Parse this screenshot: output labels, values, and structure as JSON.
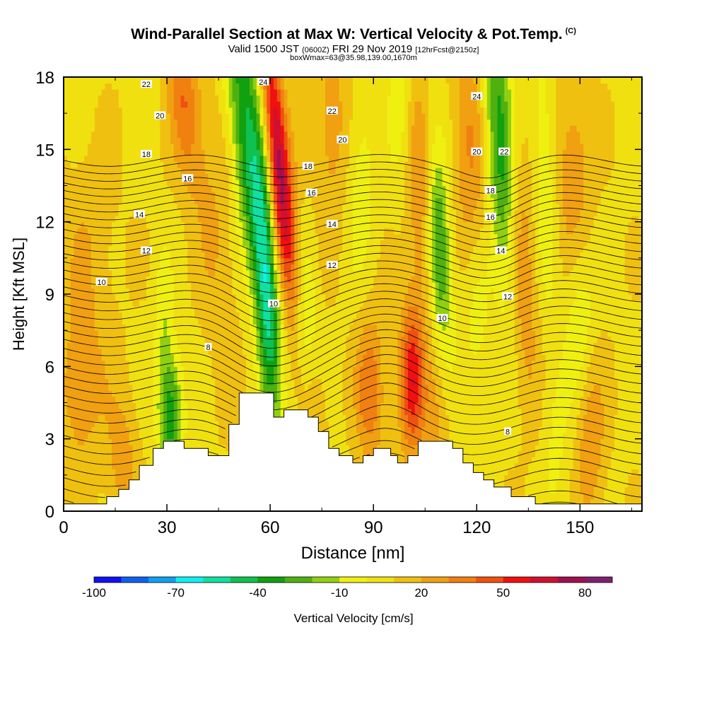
{
  "header": {
    "title": "Wind-Parallel Section at Max W: Vertical Velocity & Pot.Temp.",
    "title_tag": "(C)",
    "valid_main": "Valid 1500 JST",
    "valid_zulu": "(0600Z)",
    "valid_date": "FRI 29 Nov 2019",
    "valid_fcst": "[12hrFcst@2150z]",
    "box_info": "boxWmax=63@35.98,139.00,1670m"
  },
  "chart_data": {
    "type": "heatmap",
    "title": "Wind-Parallel Section at Max W: Vertical Velocity & Pot.Temp.",
    "xlabel": "Distance [nm]",
    "ylabel": "Height [Kft MSL]",
    "xlim": [
      0,
      168
    ],
    "ylim": [
      0,
      18
    ],
    "x_ticks": [
      0,
      30,
      60,
      90,
      120,
      150
    ],
    "y_ticks": [
      0,
      3,
      6,
      9,
      12,
      15,
      18
    ],
    "x_tick_labels": [
      "0",
      "30",
      "60",
      "90",
      "120",
      "150"
    ],
    "y_tick_labels": [
      "0",
      "3",
      "6",
      "9",
      "12",
      "15",
      "18"
    ],
    "colorbar": {
      "label": "Vertical Velocity [cm/s]",
      "labels": [
        {
          "text": "-100",
          "value": -100
        },
        {
          "text": "-70",
          "value": -70
        },
        {
          "text": "-40",
          "value": -40
        },
        {
          "text": "-10",
          "value": -10
        },
        {
          "text": "20",
          "value": 20
        },
        {
          "text": "50",
          "value": 50
        },
        {
          "text": "80",
          "value": 80
        }
      ],
      "min": -100,
      "max": 90,
      "step": 10,
      "colors": [
        "#1010f0",
        "#1060f0",
        "#10a0f0",
        "#10f0f0",
        "#10e0a0",
        "#10c050",
        "#10a010",
        "#50b010",
        "#90d010",
        "#f0f010",
        "#f0e010",
        "#f0c010",
        "#f0a010",
        "#f08010",
        "#f05010",
        "#f01010",
        "#d01030",
        "#a01050",
        "#802070"
      ]
    },
    "terrain": [
      [
        0,
        0.3
      ],
      [
        12.5,
        0.3
      ],
      [
        12.5,
        0.6
      ],
      [
        16,
        0.6
      ],
      [
        16,
        0.9
      ],
      [
        19,
        0.9
      ],
      [
        19,
        1.3
      ],
      [
        22,
        1.3
      ],
      [
        22,
        1.9
      ],
      [
        26,
        1.9
      ],
      [
        26,
        2.6
      ],
      [
        29,
        2.6
      ],
      [
        29,
        2.9
      ],
      [
        35,
        2.9
      ],
      [
        35,
        2.6
      ],
      [
        42,
        2.6
      ],
      [
        42,
        2.3
      ],
      [
        48,
        2.3
      ],
      [
        48,
        3.6
      ],
      [
        51,
        3.6
      ],
      [
        51,
        4.9
      ],
      [
        61,
        4.9
      ],
      [
        61,
        3.9
      ],
      [
        64,
        3.9
      ],
      [
        64,
        4.2
      ],
      [
        71,
        4.2
      ],
      [
        71,
        3.9
      ],
      [
        74,
        3.9
      ],
      [
        74,
        3.3
      ],
      [
        77,
        3.3
      ],
      [
        77,
        2.6
      ],
      [
        80,
        2.6
      ],
      [
        80,
        2.3
      ],
      [
        84,
        2.3
      ],
      [
        84,
        2.0
      ],
      [
        87,
        2.0
      ],
      [
        87,
        2.3
      ],
      [
        90,
        2.3
      ],
      [
        90,
        2.6
      ],
      [
        95,
        2.6
      ],
      [
        95,
        2.3
      ],
      [
        97,
        2.3
      ],
      [
        97,
        2.0
      ],
      [
        100,
        2.0
      ],
      [
        100,
        2.3
      ],
      [
        103,
        2.3
      ],
      [
        103,
        2.9
      ],
      [
        113,
        2.9
      ],
      [
        113,
        2.6
      ],
      [
        116,
        2.6
      ],
      [
        116,
        2.0
      ],
      [
        119,
        2.0
      ],
      [
        119,
        1.6
      ],
      [
        122,
        1.6
      ],
      [
        122,
        1.3
      ],
      [
        125,
        1.3
      ],
      [
        125,
        1.0
      ],
      [
        130,
        1.0
      ],
      [
        130,
        0.6
      ],
      [
        137,
        0.6
      ],
      [
        137,
        0.3
      ],
      [
        168,
        0.3
      ]
    ],
    "velocity_features": [
      {
        "x": 55,
        "y": 14,
        "sx": 3.5,
        "sy": 5.5,
        "tilt": -0.8,
        "w": -55
      },
      {
        "x": 59,
        "y": 8.5,
        "sx": 2,
        "sy": 3.5,
        "tilt": -0.3,
        "w": -35
      },
      {
        "x": 62,
        "y": 15,
        "sx": 2.2,
        "sy": 4,
        "tilt": -0.6,
        "w": 55
      },
      {
        "x": 65,
        "y": 11,
        "sx": 3,
        "sy": 3.5,
        "tilt": -0.5,
        "w": 25
      },
      {
        "x": 35,
        "y": 17,
        "sx": 3,
        "sy": 2.5,
        "tilt": -0.5,
        "w": 30
      },
      {
        "x": 44,
        "y": 12,
        "sx": 4,
        "sy": 5,
        "tilt": -0.4,
        "w": 12
      },
      {
        "x": 31,
        "y": 4,
        "sx": 2.5,
        "sy": 1.8,
        "tilt": 0,
        "w": -45
      },
      {
        "x": 29,
        "y": 8,
        "sx": 2,
        "sy": 2,
        "tilt": 0,
        "w": -15
      },
      {
        "x": 70,
        "y": 8,
        "sx": 2.5,
        "sy": 2.5,
        "tilt": 0,
        "w": -22
      },
      {
        "x": 73,
        "y": 4.5,
        "sx": 3,
        "sy": 1.6,
        "tilt": 0,
        "w": 10
      },
      {
        "x": 78,
        "y": 16,
        "sx": 4,
        "sy": 3,
        "tilt": 0,
        "w": 18
      },
      {
        "x": 86,
        "y": 14,
        "sx": 3,
        "sy": 3,
        "tilt": 0,
        "w": -15
      },
      {
        "x": 101,
        "y": 5.5,
        "sx": 2.5,
        "sy": 2.2,
        "tilt": 0,
        "w": 48
      },
      {
        "x": 89,
        "y": 5,
        "sx": 3,
        "sy": 2.2,
        "tilt": 0,
        "w": 30
      },
      {
        "x": 98,
        "y": 17,
        "sx": 2.5,
        "sy": 2.5,
        "tilt": 0,
        "w": -15
      },
      {
        "x": 109,
        "y": 11,
        "sx": 2.5,
        "sy": 3,
        "tilt": -0.3,
        "w": -45
      },
      {
        "x": 104,
        "y": 13,
        "sx": 3,
        "sy": 3.5,
        "tilt": -0.3,
        "w": 25
      },
      {
        "x": 127,
        "y": 15,
        "sx": 3,
        "sy": 4.5,
        "tilt": -0.4,
        "w": -45
      },
      {
        "x": 118,
        "y": 15,
        "sx": 3.5,
        "sy": 4,
        "tilt": -0.2,
        "w": 22
      },
      {
        "x": 133,
        "y": 10,
        "sx": 3,
        "sy": 4,
        "tilt": -0.3,
        "w": 25
      },
      {
        "x": 140,
        "y": 14,
        "sx": 2.5,
        "sy": 4,
        "tilt": -0.2,
        "w": -18
      },
      {
        "x": 150,
        "y": 8,
        "sx": 3,
        "sy": 2.5,
        "tilt": 0,
        "w": -18
      },
      {
        "x": 120,
        "y": 8,
        "sx": 3,
        "sy": 2.5,
        "tilt": 0,
        "w": -15
      },
      {
        "x": 148,
        "y": 14,
        "sx": 4,
        "sy": 3,
        "tilt": 0,
        "w": 20
      },
      {
        "x": 153,
        "y": 3,
        "sx": 3,
        "sy": 2.5,
        "tilt": 0,
        "w": 22
      },
      {
        "x": 108,
        "y": 4,
        "sx": 3,
        "sy": 2,
        "tilt": 0,
        "w": 15
      },
      {
        "x": 5,
        "y": 5,
        "sx": 5,
        "sy": 2.5,
        "tilt": 0,
        "w": 18
      },
      {
        "x": 7,
        "y": 11,
        "sx": 6,
        "sy": 3,
        "tilt": 0,
        "w": 10
      },
      {
        "x": 17,
        "y": 2,
        "sx": 3,
        "sy": 2,
        "tilt": 0,
        "w": 18
      },
      {
        "x": 143,
        "y": 3,
        "sx": 3,
        "sy": 2.5,
        "tilt": 0,
        "w": -10
      }
    ],
    "isentropes": {
      "levels": [
        6,
        6.5,
        7,
        7.5,
        8,
        8.5,
        9,
        9.5,
        10,
        10.5,
        11,
        11.5,
        12,
        12.5,
        13,
        13.5,
        14,
        14.5,
        15,
        15.5,
        16,
        16.5,
        17,
        17.5,
        18,
        18.5,
        19,
        19.5,
        20,
        20.5,
        21,
        21.5,
        22,
        22.5,
        23,
        23.5,
        24,
        24.5,
        25,
        25.5
      ],
      "labels": [
        {
          "text": "22",
          "x": 24,
          "y": 17.7
        },
        {
          "text": "20",
          "x": 28,
          "y": 16.4
        },
        {
          "text": "18",
          "x": 24,
          "y": 14.8
        },
        {
          "text": "16",
          "x": 36,
          "y": 13.8
        },
        {
          "text": "14",
          "x": 22,
          "y": 12.3
        },
        {
          "text": "12",
          "x": 24,
          "y": 10.8
        },
        {
          "text": "10",
          "x": 11,
          "y": 9.5
        },
        {
          "text": "8",
          "x": 42,
          "y": 6.8
        },
        {
          "text": "24",
          "x": 58,
          "y": 17.8
        },
        {
          "text": "22",
          "x": 78,
          "y": 16.6
        },
        {
          "text": "20",
          "x": 81,
          "y": 15.4
        },
        {
          "text": "18",
          "x": 71,
          "y": 14.3
        },
        {
          "text": "16",
          "x": 72,
          "y": 13.2
        },
        {
          "text": "14",
          "x": 78,
          "y": 11.9
        },
        {
          "text": "12",
          "x": 78,
          "y": 10.2
        },
        {
          "text": "10",
          "x": 61,
          "y": 8.6
        },
        {
          "text": "24",
          "x": 120,
          "y": 17.2
        },
        {
          "text": "22",
          "x": 128,
          "y": 14.9
        },
        {
          "text": "20",
          "x": 120,
          "y": 14.9
        },
        {
          "text": "18",
          "x": 124,
          "y": 13.3
        },
        {
          "text": "16",
          "x": 124,
          "y": 12.2
        },
        {
          "text": "14",
          "x": 127,
          "y": 10.8
        },
        {
          "text": "12",
          "x": 129,
          "y": 8.9
        },
        {
          "text": "10",
          "x": 110,
          "y": 8.0
        },
        {
          "text": "8",
          "x": 129,
          "y": 3.3
        }
      ]
    }
  }
}
